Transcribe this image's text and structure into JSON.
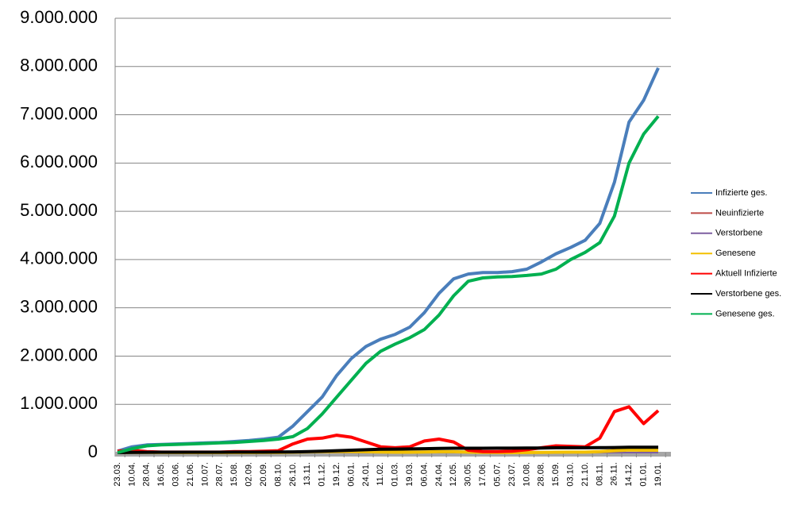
{
  "chart_data": {
    "type": "line",
    "categories": [
      "23.03.",
      "10.04.",
      "28.04.",
      "16.05.",
      "03.06.",
      "21.06.",
      "10.07.",
      "28.07.",
      "15.08.",
      "02.09.",
      "20.09.",
      "08.10.",
      "26.10.",
      "13.11.",
      "01.12.",
      "19.12.",
      "06.01.",
      "24.01.",
      "11.02.",
      "01.03.",
      "19.03.",
      "06.04.",
      "24.04.",
      "12.05.",
      "30.05.",
      "17.06.",
      "05.07.",
      "23.07.",
      "10.08.",
      "28.08.",
      "15.09.",
      "03.10.",
      "21.10.",
      "08.11.",
      "26.11.",
      "14.12.",
      "01.01.",
      "19.01."
    ],
    "ylim": [
      0,
      9000000
    ],
    "yticks": [
      0,
      {
        "value": 1000000,
        "label": "1.000.000"
      },
      {
        "value": 2000000,
        "label": "2.000.000"
      },
      {
        "value": 3000000,
        "label": "3.000.000"
      },
      {
        "value": 4000000,
        "label": "4.000.000"
      },
      {
        "value": 5000000,
        "label": "5.000.000"
      },
      {
        "value": 6000000,
        "label": "6.000.000"
      },
      {
        "value": 7000000,
        "label": "7.000.000"
      },
      {
        "value": 8000000,
        "label": "8.000.000"
      },
      {
        "value": 9000000,
        "label": "9.000.000"
      }
    ],
    "grid": true,
    "legend": "right",
    "series": [
      {
        "name": "Infizierte ges.",
        "color": "#4a7ebb",
        "values": [
          30000,
          120000,
          160000,
          170000,
          180000,
          190000,
          200000,
          210000,
          230000,
          250000,
          280000,
          320000,
          550000,
          850000,
          1150000,
          1600000,
          1950000,
          2200000,
          2350000,
          2450000,
          2600000,
          2900000,
          3300000,
          3600000,
          3700000,
          3730000,
          3730000,
          3750000,
          3800000,
          3950000,
          4120000,
          4250000,
          4400000,
          4750000,
          5600000,
          6850000,
          7300000,
          7970000
        ]
      },
      {
        "name": "Neuinfizierte",
        "color": "#be4b48",
        "values": [
          3000,
          4000,
          1500,
          800,
          500,
          600,
          500,
          700,
          1200,
          1500,
          2000,
          4000,
          12000,
          18000,
          17000,
          22000,
          20000,
          12000,
          8000,
          8000,
          10000,
          17000,
          20000,
          12000,
          4000,
          1000,
          600,
          1000,
          4000,
          9000,
          10000,
          9000,
          12000,
          30000,
          60000,
          60000,
          30000,
          40000
        ]
      },
      {
        "name": "Verstorbene",
        "color": "#7d5fa0",
        "values": [
          100,
          200,
          200,
          100,
          50,
          20,
          10,
          10,
          10,
          10,
          20,
          40,
          150,
          250,
          400,
          600,
          700,
          500,
          300,
          200,
          200,
          200,
          200,
          150,
          80,
          30,
          10,
          10,
          10,
          20,
          30,
          50,
          80,
          150,
          300,
          400,
          400,
          500
        ]
      },
      {
        "name": "Genesene",
        "color": "#f3c000",
        "values": [
          500,
          4000,
          4000,
          2000,
          1000,
          700,
          500,
          500,
          600,
          800,
          1000,
          2000,
          8000,
          15000,
          18000,
          20000,
          22000,
          18000,
          12000,
          9000,
          9000,
          12000,
          18000,
          18000,
          10000,
          4000,
          1500,
          800,
          2000,
          5000,
          9000,
          10000,
          10000,
          20000,
          40000,
          55000,
          50000,
          50000
        ]
      },
      {
        "name": "Aktuell Infizierte",
        "color": "#ff0000",
        "values": [
          30000,
          50000,
          20000,
          10000,
          10000,
          10000,
          10000,
          10000,
          20000,
          20000,
          30000,
          40000,
          180000,
          280000,
          300000,
          360000,
          320000,
          220000,
          120000,
          100000,
          120000,
          240000,
          280000,
          220000,
          50000,
          20000,
          20000,
          30000,
          60000,
          100000,
          140000,
          130000,
          120000,
          300000,
          850000,
          950000,
          600000,
          870000
        ]
      },
      {
        "name": "Verstorbene ges.",
        "color": "#000000",
        "values": [
          0,
          5000,
          7000,
          8000,
          9000,
          9000,
          9000,
          9000,
          10000,
          10000,
          10000,
          12000,
          15000,
          20000,
          30000,
          40000,
          50000,
          60000,
          70000,
          72000,
          75000,
          80000,
          85000,
          90000,
          90000,
          90000,
          92000,
          92000,
          93000,
          95000,
          100000,
          100000,
          100000,
          102000,
          105000,
          110000,
          110000,
          112000
        ]
      },
      {
        "name": "Genesene ges.",
        "color": "#00b050",
        "values": [
          0,
          80000,
          140000,
          160000,
          170000,
          180000,
          190000,
          200000,
          210000,
          230000,
          250000,
          280000,
          330000,
          500000,
          800000,
          1150000,
          1500000,
          1850000,
          2100000,
          2250000,
          2380000,
          2550000,
          2850000,
          3250000,
          3550000,
          3620000,
          3640000,
          3650000,
          3670000,
          3700000,
          3800000,
          4000000,
          4150000,
          4350000,
          4900000,
          6000000,
          6600000,
          6970000
        ]
      }
    ]
  }
}
